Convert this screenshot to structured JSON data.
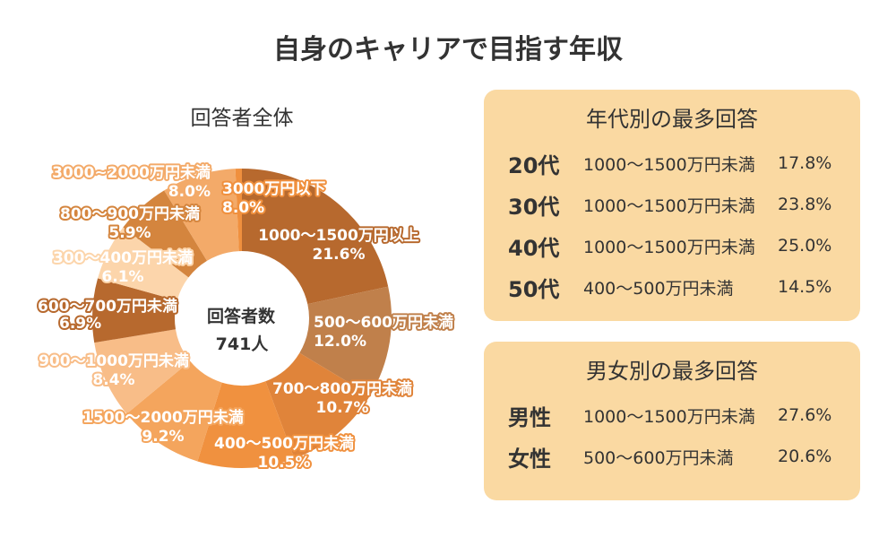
{
  "title": "自身のキャリアで目指す年収",
  "chart_data": {
    "type": "pie",
    "title": "回答者全体",
    "center_label": "回答者数",
    "center_value": "741人",
    "unit": "%",
    "categories": [
      "1000〜1500万円以上",
      "500〜600万円未満",
      "700〜800万円未満",
      "400〜500万円未満",
      "1500〜2000万円未満",
      "900〜1000万円未満",
      "600〜700万円未満",
      "300〜400万円未満",
      "800〜900万円未満",
      "3000~2000万円未満",
      "3000万円以下"
    ],
    "values": [
      21.6,
      12.0,
      10.7,
      10.5,
      9.2,
      8.4,
      6.9,
      6.1,
      5.9,
      8.0,
      8.0
    ],
    "colors": [
      "#b7692e",
      "#c0804b",
      "#e0843a",
      "#f0913f",
      "#f4a55d",
      "#f8bd88",
      "#b7692e",
      "#fcd5ab",
      "#d4853e",
      "#f3aa69",
      "#f0903e"
    ]
  },
  "age_box": {
    "title": "年代別の最多回答",
    "rows": [
      {
        "label": "20代",
        "range": "1000〜1500万円未満",
        "percent": "17.8%"
      },
      {
        "label": "30代",
        "range": "1000〜1500万円未満",
        "percent": "23.8%"
      },
      {
        "label": "40代",
        "range": "1000〜1500万円未満",
        "percent": "25.0%"
      },
      {
        "label": "50代",
        "range": "400〜500万円未満",
        "percent": "14.5%"
      }
    ]
  },
  "gender_box": {
    "title": "男女別の最多回答",
    "rows": [
      {
        "label": "男性",
        "range": "1000〜1500万円未満",
        "percent": "27.6%"
      },
      {
        "label": "女性",
        "range": "500〜600万円未満",
        "percent": "20.6%"
      }
    ]
  },
  "colors": {
    "panel": "#fad9a2"
  }
}
